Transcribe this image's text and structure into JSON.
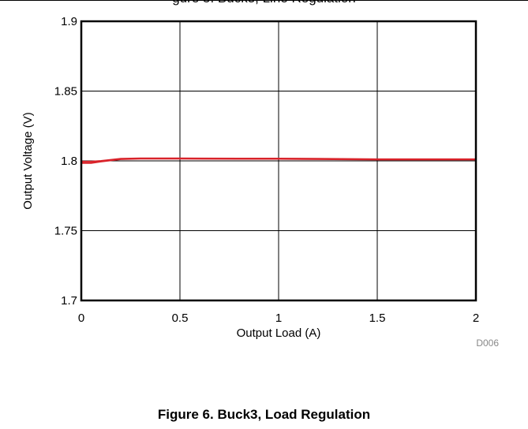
{
  "page_top_text": "gure 5. Buck3, Line Regulation",
  "caption": "Figure 6. Buck3, Load Regulation",
  "chart_data": {
    "type": "line",
    "title": "",
    "xlabel": "Output Load (A)",
    "ylabel": "Output Voltage (V)",
    "xlim": [
      0,
      2
    ],
    "ylim": [
      1.7,
      1.9
    ],
    "x_ticks": [
      0,
      0.5,
      1,
      1.5,
      2
    ],
    "x_tick_labels": [
      "0",
      "0.5",
      "1",
      "1.5",
      "2"
    ],
    "y_ticks": [
      1.7,
      1.75,
      1.8,
      1.85,
      1.9
    ],
    "y_tick_labels": [
      "1.7",
      "1.75",
      "1.8",
      "1.85",
      "1.9"
    ],
    "grid": true,
    "annotation": "D006",
    "series": [
      {
        "color": "#d9232a",
        "x": [
          0,
          0.05,
          0.1,
          0.2,
          0.3,
          0.5,
          0.8,
          1.0,
          1.2,
          1.5,
          1.8,
          2.0
        ],
        "y": [
          1.7995,
          1.7995,
          1.8,
          1.8015,
          1.8018,
          1.8018,
          1.8017,
          1.8017,
          1.8015,
          1.8012,
          1.8012,
          1.8012
        ]
      },
      {
        "color": "#d9232a",
        "x": [
          0,
          0.05,
          0.1,
          0.2,
          0.3,
          0.5,
          0.8,
          1.0,
          1.2,
          1.5,
          1.8,
          2.0
        ],
        "y": [
          1.7985,
          1.7985,
          1.7995,
          1.8012,
          1.8015,
          1.8015,
          1.8014,
          1.8014,
          1.8012,
          1.8009,
          1.8009,
          1.8009
        ]
      }
    ]
  }
}
